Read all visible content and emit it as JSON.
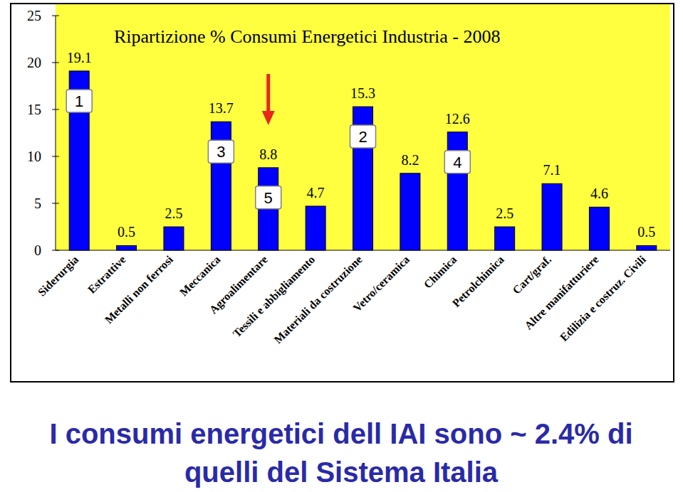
{
  "chart_data": {
    "type": "bar",
    "title": "Ripartizione % Consumi Energetici Industria - 2008",
    "categories": [
      "Siderurgia",
      "Estrattive",
      "Metalli non ferrosi",
      "Meccanica",
      "Agroalimentare",
      "Tessili e abbigliamento",
      "Materiali da costruzione",
      "Vetro/ceramica",
      "Chimica",
      "Petrolchimica",
      "Cart/graf.",
      "Altre manifatturiere",
      "Edilizia e costruz. Civili"
    ],
    "values": [
      19.1,
      0.5,
      2.5,
      13.7,
      8.8,
      4.7,
      15.3,
      8.2,
      12.6,
      2.5,
      7.1,
      4.6,
      0.5
    ],
    "ranks": [
      1,
      null,
      null,
      3,
      5,
      null,
      2,
      null,
      4,
      null,
      null,
      null,
      null
    ],
    "color": "#0000ff",
    "ylim": [
      0,
      25
    ],
    "yticks": [
      0,
      5,
      10,
      15,
      20,
      25
    ],
    "data_labels": true,
    "grid": false,
    "caption": [
      "I consumi energetici dell IAI sono ~ 2.4% di",
      "quelli del Sistema Italia"
    ]
  }
}
